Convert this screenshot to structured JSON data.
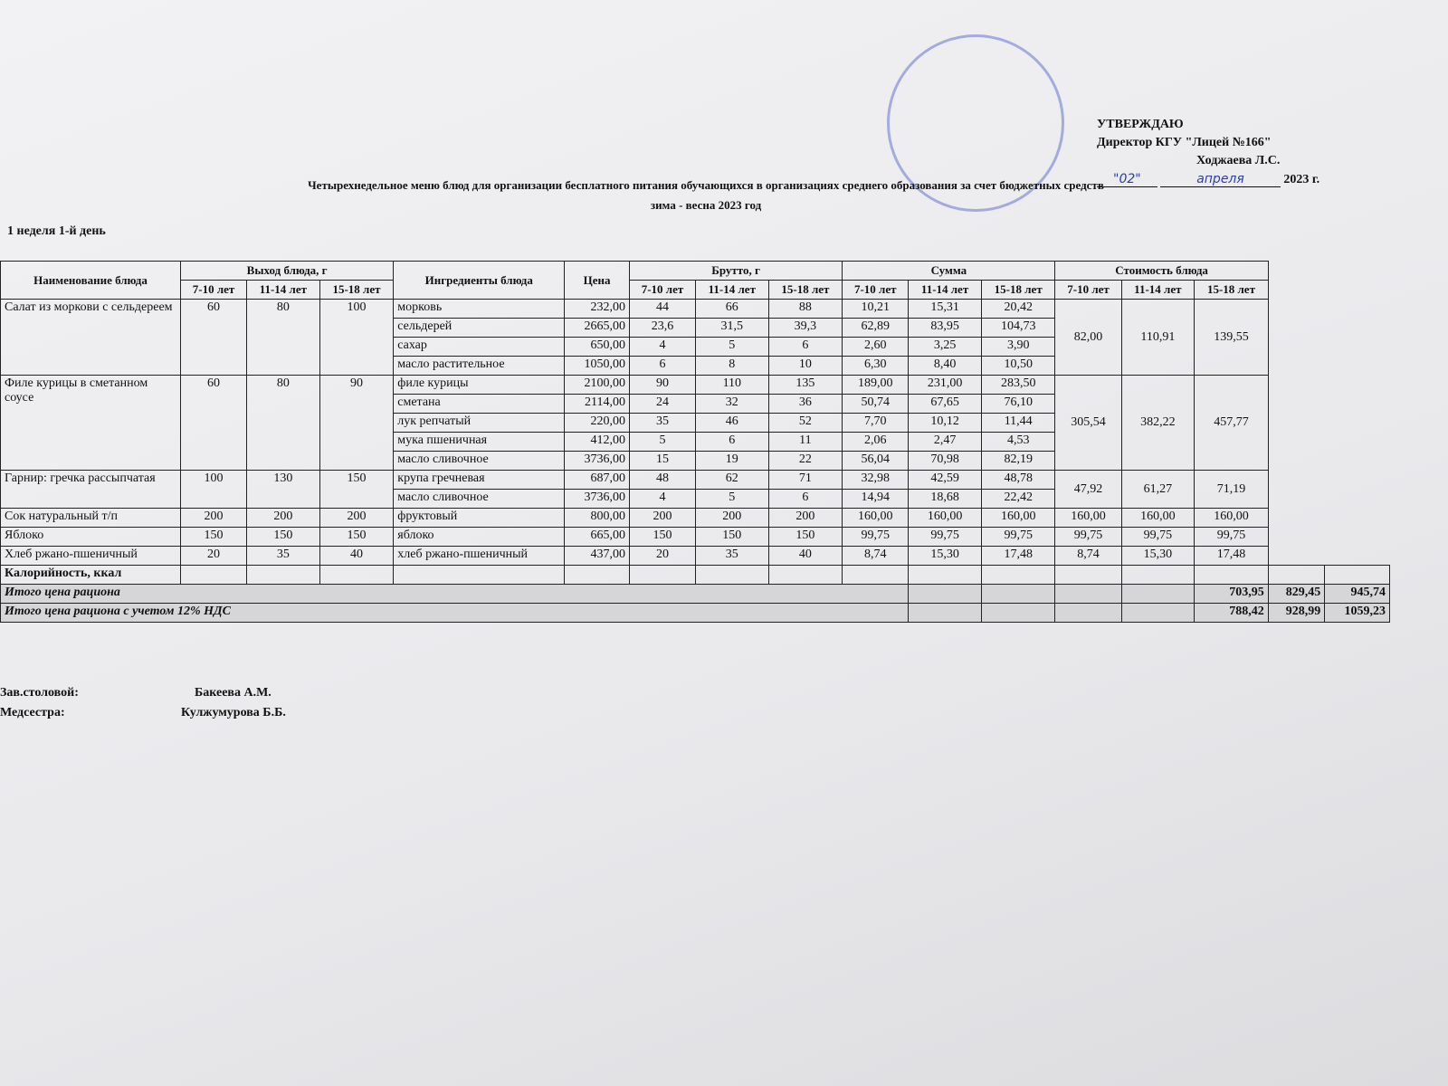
{
  "header": {
    "approve": "УТВЕРЖДАЮ",
    "position": "Директор КГУ \"Лицей №166\"",
    "director": "Ходжаева Л.С.",
    "date": {
      "day": "\"02\"",
      "month": "апреля",
      "year": "2023 г."
    }
  },
  "title": "Четырехнедельное меню блюд для организации бесплатного питания обучающихся в организациях среднего образования за счет бюджетных средств",
  "subtitle": "зима - весна 2023 год",
  "day": "1 неделя 1-й день",
  "table": {
    "headers": {
      "dish": "Наименование блюда",
      "output": "Выход блюда, г",
      "ingredients": "Ингредиенты блюда",
      "price": "Цена",
      "brutto": "Брутто, г",
      "sum": "Сумма",
      "cost": "Стоимость блюда",
      "ages": [
        "7-10 лет",
        "11-14 лет",
        "15-18 лет"
      ]
    },
    "dishes": [
      {
        "name": "Салат из моркови с сельдереем",
        "output": [
          "60",
          "80",
          "100"
        ],
        "cost": [
          "82,00",
          "110,91",
          "139,55"
        ],
        "ingredients": [
          {
            "name": "морковь",
            "price": "232,00",
            "brutto": [
              "44",
              "66",
              "88"
            ],
            "sum": [
              "10,21",
              "15,31",
              "20,42"
            ]
          },
          {
            "name": "сельдерей",
            "price": "2665,00",
            "brutto": [
              "23,6",
              "31,5",
              "39,3"
            ],
            "sum": [
              "62,89",
              "83,95",
              "104,73"
            ]
          },
          {
            "name": "сахар",
            "price": "650,00",
            "brutto": [
              "4",
              "5",
              "6"
            ],
            "sum": [
              "2,60",
              "3,25",
              "3,90"
            ]
          },
          {
            "name": "масло растительное",
            "price": "1050,00",
            "brutto": [
              "6",
              "8",
              "10"
            ],
            "sum": [
              "6,30",
              "8,40",
              "10,50"
            ]
          }
        ]
      },
      {
        "name": "Филе курицы в сметанном соусе",
        "output": [
          "60",
          "80",
          "90"
        ],
        "cost": [
          "305,54",
          "382,22",
          "457,77"
        ],
        "ingredients": [
          {
            "name": "филе курицы",
            "price": "2100,00",
            "brutto": [
              "90",
              "110",
              "135"
            ],
            "sum": [
              "189,00",
              "231,00",
              "283,50"
            ]
          },
          {
            "name": "сметана",
            "price": "2114,00",
            "brutto": [
              "24",
              "32",
              "36"
            ],
            "sum": [
              "50,74",
              "67,65",
              "76,10"
            ]
          },
          {
            "name": "лук репчатый",
            "price": "220,00",
            "brutto": [
              "35",
              "46",
              "52"
            ],
            "sum": [
              "7,70",
              "10,12",
              "11,44"
            ]
          },
          {
            "name": "мука пшеничная",
            "price": "412,00",
            "brutto": [
              "5",
              "6",
              "11"
            ],
            "sum": [
              "2,06",
              "2,47",
              "4,53"
            ]
          },
          {
            "name": "масло сливочное",
            "price": "3736,00",
            "brutto": [
              "15",
              "19",
              "22"
            ],
            "sum": [
              "56,04",
              "70,98",
              "82,19"
            ]
          }
        ]
      },
      {
        "name": "Гарнир: гречка рассыпчатая",
        "output": [
          "100",
          "130",
          "150"
        ],
        "cost": [
          "47,92",
          "61,27",
          "71,19"
        ],
        "ingredients": [
          {
            "name": "крупа гречневая",
            "price": "687,00",
            "brutto": [
              "48",
              "62",
              "71"
            ],
            "sum": [
              "32,98",
              "42,59",
              "48,78"
            ]
          },
          {
            "name": "масло сливочное",
            "price": "3736,00",
            "brutto": [
              "4",
              "5",
              "6"
            ],
            "sum": [
              "14,94",
              "18,68",
              "22,42"
            ]
          }
        ]
      },
      {
        "name": "Сок натуральный т/п",
        "output": [
          "200",
          "200",
          "200"
        ],
        "cost": [
          "160,00",
          "160,00",
          "160,00"
        ],
        "ingredients": [
          {
            "name": "фруктовый",
            "price": "800,00",
            "brutto": [
              "200",
              "200",
              "200"
            ],
            "sum": [
              "160,00",
              "160,00",
              "160,00"
            ]
          }
        ]
      },
      {
        "name": "Яблоко",
        "output": [
          "150",
          "150",
          "150"
        ],
        "cost": [
          "99,75",
          "99,75",
          "99,75"
        ],
        "ingredients": [
          {
            "name": "яблоко",
            "price": "665,00",
            "brutto": [
              "150",
              "150",
              "150"
            ],
            "sum": [
              "99,75",
              "99,75",
              "99,75"
            ]
          }
        ]
      },
      {
        "name": "Хлеб ржано-пшеничный",
        "output": [
          "20",
          "35",
          "40"
        ],
        "cost": [
          "8,74",
          "15,30",
          "17,48"
        ],
        "ingredients": [
          {
            "name": "хлеб ржано-пшеничный",
            "price": "437,00",
            "brutto": [
              "20",
              "35",
              "40"
            ],
            "sum": [
              "8,74",
              "15,30",
              "17,48"
            ]
          }
        ]
      }
    ],
    "calories": "Калорийность, ккал",
    "totals": [
      {
        "label": "Итого цена рациона",
        "values": [
          "703,95",
          "829,45",
          "945,74"
        ]
      },
      {
        "label": "Итого цена рациона с учетом 12% НДС",
        "values": [
          "788,42",
          "928,99",
          "1059,23"
        ]
      }
    ]
  },
  "signatures": [
    {
      "role": "Зав.столовой:",
      "name": "Бакеева А.М."
    },
    {
      "role": "Медсестра:",
      "name": "Кулжумурова Б.Б."
    }
  ]
}
